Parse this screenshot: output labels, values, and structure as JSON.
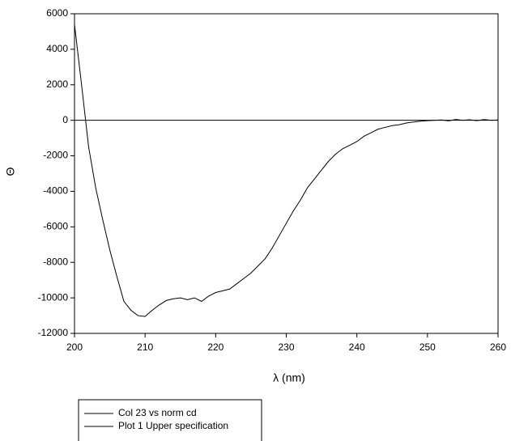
{
  "chart_data": {
    "type": "line",
    "x_label": "λ (nm)",
    "y_label": "Θ",
    "x": [
      200,
      201,
      202,
      203,
      204,
      205,
      206,
      207,
      208,
      209,
      210,
      211,
      212,
      213,
      214,
      215,
      216,
      217,
      218,
      219,
      220,
      221,
      222,
      223,
      224,
      225,
      226,
      227,
      228,
      229,
      230,
      231,
      232,
      233,
      234,
      235,
      236,
      237,
      238,
      239,
      240,
      241,
      242,
      243,
      244,
      245,
      246,
      247,
      248,
      249,
      250,
      251,
      252,
      253,
      254,
      255,
      256,
      257,
      258,
      259,
      260
    ],
    "series": [
      {
        "name": "Col 23 vs norm cd",
        "color": "#000000",
        "values": [
          5400,
          2000,
          -1500,
          -3800,
          -5600,
          -7300,
          -8800,
          -10200,
          -10700,
          -11000,
          -11050,
          -10700,
          -10400,
          -10150,
          -10050,
          -10000,
          -10100,
          -10000,
          -10200,
          -9900,
          -9700,
          -9600,
          -9500,
          -9200,
          -8900,
          -8600,
          -8200,
          -7800,
          -7200,
          -6500,
          -5800,
          -5100,
          -4500,
          -3800,
          -3300,
          -2800,
          -2300,
          -1900,
          -1600,
          -1400,
          -1200,
          -900,
          -700,
          -500,
          -400,
          -300,
          -250,
          -150,
          -100,
          -50,
          -20,
          0,
          20,
          -30,
          50,
          0,
          30,
          -20,
          40,
          0,
          20
        ]
      },
      {
        "name": "Plot 1 Upper specification",
        "color": "#000000",
        "x": [
          200,
          260
        ],
        "values": [
          0,
          0
        ]
      }
    ],
    "xlim": [
      200,
      260
    ],
    "xticks": [
      200,
      210,
      220,
      230,
      240,
      250,
      260
    ],
    "ylim": [
      -12000,
      6000
    ],
    "yticks": [
      -12000,
      -10000,
      -8000,
      -6000,
      -4000,
      -2000,
      0,
      2000,
      4000,
      6000
    ],
    "grid": false,
    "legend": "bottom-left"
  }
}
